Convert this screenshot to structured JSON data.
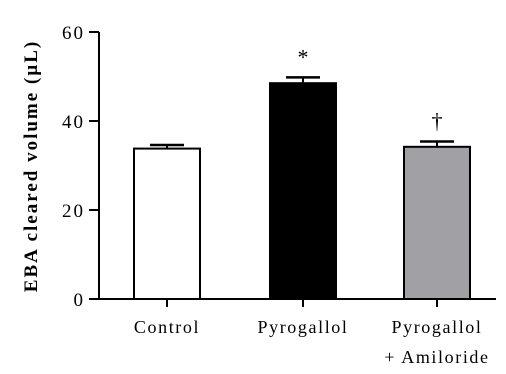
{
  "chart_data": {
    "type": "bar",
    "title": "",
    "xlabel": "",
    "ylabel": "EBA cleared volume (µL)",
    "ylim": [
      0,
      60
    ],
    "yticks": [
      0,
      20,
      40,
      60
    ],
    "grid": false,
    "categories": [
      {
        "label": "Control",
        "sublabel": ""
      },
      {
        "label": "Pyrogallol",
        "sublabel": ""
      },
      {
        "label": "Pyrogallol",
        "sublabel": "+ Amiloride"
      }
    ],
    "values": [
      33.8,
      48.5,
      34.2
    ],
    "errors": [
      0.8,
      1.3,
      1.2
    ],
    "fill_colors": [
      "#ffffff",
      "#000000",
      "#a0a0a5"
    ],
    "annotations": [
      "",
      "*",
      "†"
    ]
  }
}
